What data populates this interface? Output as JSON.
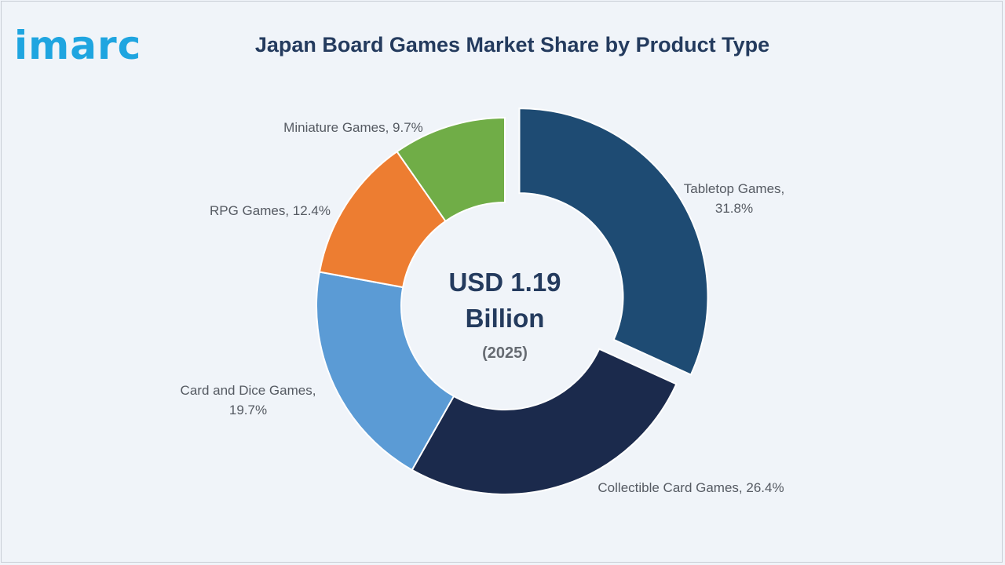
{
  "logo_text": "imarc",
  "chart_data": {
    "type": "pie",
    "subtype": "donut",
    "title": "Japan Board Games Market Share by Product Type",
    "center_value": "USD 1.19",
    "center_unit": "Billion",
    "center_year": "(2025)",
    "slices": [
      {
        "name": "Tabletop Games",
        "value": 31.8,
        "color": "#1e4b73",
        "exploded": true,
        "label_lines": [
          "Tabletop Games,",
          "31.8%"
        ]
      },
      {
        "name": "Collectible Card Games",
        "value": 26.4,
        "color": "#1b2a4c",
        "label_lines": [
          "Collectible Card Games, 26.4%"
        ]
      },
      {
        "name": "Card and Dice Games",
        "value": 19.7,
        "color": "#5b9bd5",
        "label_lines": [
          "Card and Dice Games,",
          "19.7%"
        ]
      },
      {
        "name": "RPG Games",
        "value": 12.4,
        "color": "#ed7d31",
        "label_lines": [
          "RPG Games, 12.4%"
        ]
      },
      {
        "name": "Miniature Games",
        "value": 9.7,
        "color": "#70ad47",
        "label_lines": [
          "Miniature Games, 9.7%"
        ]
      }
    ]
  }
}
